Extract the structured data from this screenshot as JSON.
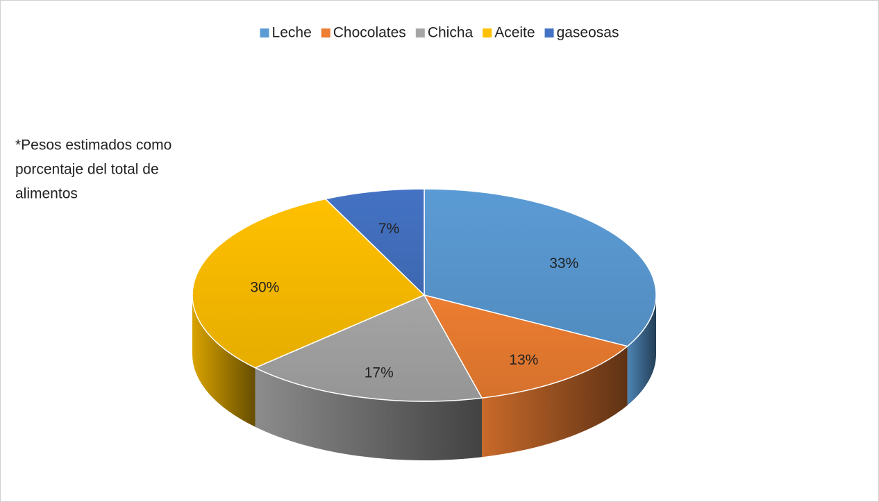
{
  "chart_data": {
    "type": "pie",
    "annotation": [
      "*Pesos estimados como",
      "porcentaje del total de",
      "alimentos"
    ],
    "categories": [
      "Leche",
      "Chocolates",
      "Chicha",
      "Aceite",
      "gaseosas"
    ],
    "values": [
      33,
      13,
      17,
      30,
      7
    ],
    "value_labels": [
      "33%",
      "13%",
      "17%",
      "30%",
      "7%"
    ],
    "colors": [
      "#5b9bd5",
      "#ed7d31",
      "#a5a5a5",
      "#ffc000",
      "#4472c4"
    ],
    "legend": "top"
  }
}
